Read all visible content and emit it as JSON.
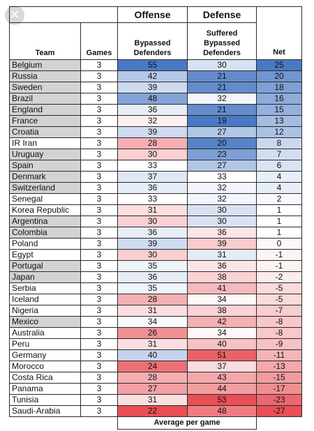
{
  "headers": {
    "offense": "Offense",
    "defense": "Defense",
    "team": "Team",
    "games": "Games",
    "bypassed": "Bypassed Defenders",
    "suffered": "Suffered Bypassed Defenders",
    "net": "Net"
  },
  "footer": "Average per game",
  "icons": {
    "close": "close-icon"
  },
  "rows": [
    {
      "team": "Belgium",
      "games": "3",
      "bypassed": "55",
      "suffered": "30",
      "net": "25",
      "hl": true
    },
    {
      "team": "Russia",
      "games": "3",
      "bypassed": "42",
      "suffered": "21",
      "net": "20",
      "hl": true
    },
    {
      "team": "Sweden",
      "games": "3",
      "bypassed": "39",
      "suffered": "21",
      "net": "18",
      "hl": true
    },
    {
      "team": "Brazil",
      "games": "3",
      "bypassed": "48",
      "suffered": "32",
      "net": "16",
      "hl": true
    },
    {
      "team": "England",
      "games": "3",
      "bypassed": "36",
      "suffered": "21",
      "net": "15",
      "hl": true
    },
    {
      "team": "France",
      "games": "3",
      "bypassed": "32",
      "suffered": "19",
      "net": "13",
      "hl": true
    },
    {
      "team": "Croatia",
      "games": "3",
      "bypassed": "39",
      "suffered": "27",
      "net": "12",
      "hl": true
    },
    {
      "team": "IR Iran",
      "games": "3",
      "bypassed": "28",
      "suffered": "20",
      "net": "8",
      "hl": false
    },
    {
      "team": "Uruguay",
      "games": "3",
      "bypassed": "30",
      "suffered": "23",
      "net": "7",
      "hl": true
    },
    {
      "team": "Spain",
      "games": "3",
      "bypassed": "33",
      "suffered": "27",
      "net": "6",
      "hl": true
    },
    {
      "team": "Denmark",
      "games": "3",
      "bypassed": "37",
      "suffered": "33",
      "net": "4",
      "hl": true
    },
    {
      "team": "Switzerland",
      "games": "3",
      "bypassed": "36",
      "suffered": "32",
      "net": "4",
      "hl": true
    },
    {
      "team": "Senegal",
      "games": "3",
      "bypassed": "33",
      "suffered": "32",
      "net": "2",
      "hl": false
    },
    {
      "team": "Korea Republic",
      "games": "3",
      "bypassed": "31",
      "suffered": "30",
      "net": "1",
      "hl": false
    },
    {
      "team": "Argentina",
      "games": "3",
      "bypassed": "30",
      "suffered": "30",
      "net": "1",
      "hl": true
    },
    {
      "team": "Colombia",
      "games": "3",
      "bypassed": "36",
      "suffered": "36",
      "net": "1",
      "hl": true
    },
    {
      "team": "Poland",
      "games": "3",
      "bypassed": "39",
      "suffered": "39",
      "net": "0",
      "hl": false
    },
    {
      "team": "Egypt",
      "games": "3",
      "bypassed": "30",
      "suffered": "31",
      "net": "-1",
      "hl": false
    },
    {
      "team": "Portugal",
      "games": "3",
      "bypassed": "35",
      "suffered": "36",
      "net": "-1",
      "hl": true
    },
    {
      "team": "Japan",
      "games": "3",
      "bypassed": "36",
      "suffered": "38",
      "net": "-2",
      "hl": true
    },
    {
      "team": "Serbia",
      "games": "3",
      "bypassed": "35",
      "suffered": "41",
      "net": "-5",
      "hl": false
    },
    {
      "team": "Iceland",
      "games": "3",
      "bypassed": "28",
      "suffered": "34",
      "net": "-5",
      "hl": false
    },
    {
      "team": "Nigeria",
      "games": "3",
      "bypassed": "31",
      "suffered": "38",
      "net": "-7",
      "hl": false
    },
    {
      "team": "Mexico",
      "games": "3",
      "bypassed": "34",
      "suffered": "42",
      "net": "-8",
      "hl": true
    },
    {
      "team": "Australia",
      "games": "3",
      "bypassed": "26",
      "suffered": "34",
      "net": "-8",
      "hl": false
    },
    {
      "team": "Peru",
      "games": "3",
      "bypassed": "31",
      "suffered": "40",
      "net": "-9",
      "hl": false
    },
    {
      "team": "Germany",
      "games": "3",
      "bypassed": "40",
      "suffered": "51",
      "net": "-11",
      "hl": false
    },
    {
      "team": "Morocco",
      "games": "3",
      "bypassed": "24",
      "suffered": "37",
      "net": "-13",
      "hl": false
    },
    {
      "team": "Costa Rica",
      "games": "3",
      "bypassed": "28",
      "suffered": "43",
      "net": "-15",
      "hl": false
    },
    {
      "team": "Panama",
      "games": "3",
      "bypassed": "27",
      "suffered": "44",
      "net": "-17",
      "hl": false
    },
    {
      "team": "Tunisia",
      "games": "3",
      "bypassed": "31",
      "suffered": "53",
      "net": "-23",
      "hl": false
    },
    {
      "team": "Saudi-Arabia",
      "games": "3",
      "bypassed": "22",
      "suffered": "48",
      "net": "-27",
      "hl": false
    }
  ]
}
